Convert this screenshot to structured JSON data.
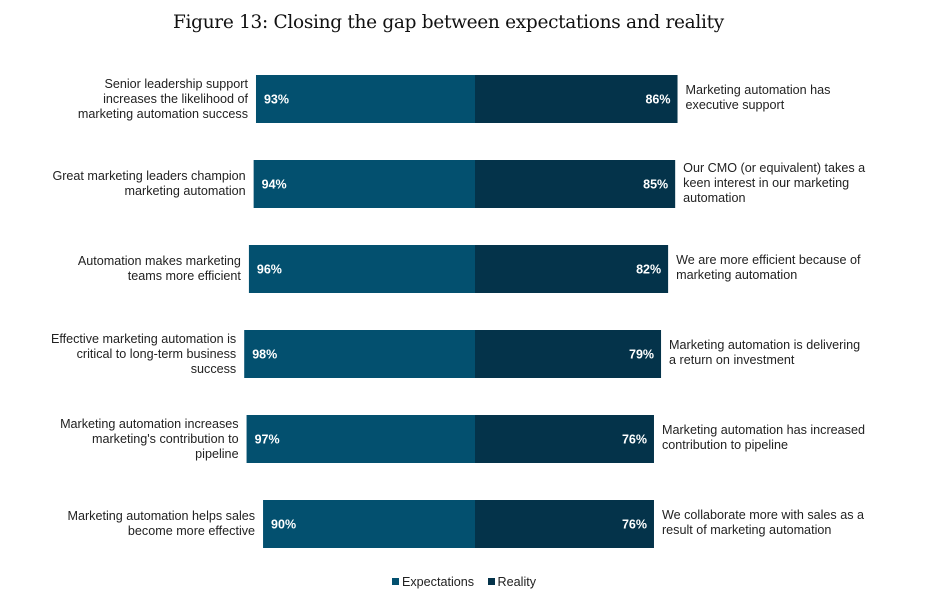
{
  "chart_data": {
    "type": "bar",
    "orientation": "horizontal-diverging",
    "title": "Figure 13: Closing the gap between expectations and reality",
    "xlabel": "",
    "ylabel": "",
    "grid": false,
    "legend_position": "bottom-center",
    "series": [
      {
        "name": "Expectations",
        "color": "#03506F",
        "direction": "left",
        "values": [
          93,
          94,
          96,
          98,
          97,
          90
        ],
        "value_labels": [
          "93%",
          "94%",
          "96%",
          "98%",
          "97%",
          "90%"
        ],
        "category_labels": [
          "Senior leadership support\nincreases the likelihood  of\nmarketing automation success",
          "Great marketing leaders champion\nmarketing automation",
          "Automation makes marketing\nteams more efficient",
          "Effective marketing automation is\ncritical to long-term business\nsuccess",
          "Marketing automation increases\nmarketing's contribution to\npipeline",
          "Marketing automation helps sales\nbecome more effective"
        ]
      },
      {
        "name": "Reality",
        "color": "#04334A",
        "direction": "right",
        "values": [
          86,
          85,
          82,
          79,
          76,
          76
        ],
        "value_labels": [
          "86%",
          "85%",
          "82%",
          "79%",
          "76%",
          "76%"
        ],
        "category_labels": [
          "Marketing automation has\nexecutive support",
          "Our CMO (or equivalent) takes a\nkeen interest in our marketing\nautomation",
          "We are more efficient because of\nmarketing automation",
          "Marketing automation is delivering\na return on investment",
          "Marketing automation has increased\ncontribution to pipeline",
          "We collaborate more with sales as a\nresult of marketing automation"
        ]
      }
    ],
    "value_unit": "%"
  },
  "legend": [
    {
      "label": "Expectations",
      "color": "#03506F"
    },
    {
      "label": "Reality",
      "color": "#04334A"
    }
  ]
}
